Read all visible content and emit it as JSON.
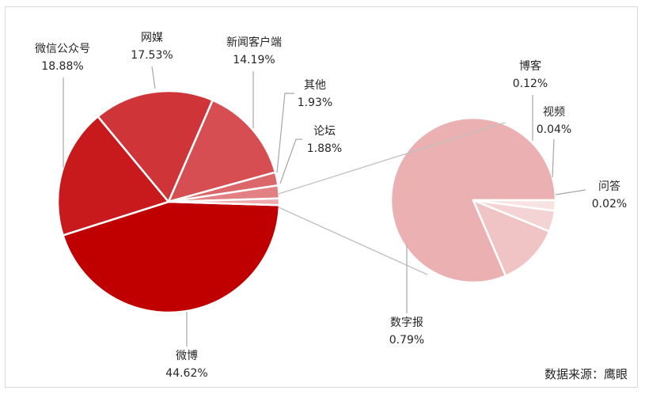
{
  "chart_data": {
    "type": "pie",
    "subtype": "pie-of-pie",
    "main_pie": {
      "slices": [
        {
          "name": "微博",
          "value_label": "44.62%",
          "value": 44.62,
          "color": "#c00000"
        },
        {
          "name": "微信公众号",
          "value_label": "18.88%",
          "value": 18.88,
          "color": "#c8191c"
        },
        {
          "name": "网媒",
          "value_label": "17.53%",
          "value": 17.53,
          "color": "#cf3538"
        },
        {
          "name": "新闻客户端",
          "value_label": "14.19%",
          "value": 14.19,
          "color": "#d64e51"
        },
        {
          "name": "其他",
          "value_label": "1.93%",
          "value": 1.93,
          "color": "#dc676a"
        },
        {
          "name": "论坛",
          "value_label": "1.88%",
          "value": 1.88,
          "color": "#e28083"
        },
        {
          "name": "",
          "value_label": "",
          "value": 0.97,
          "color": "#eeaaac"
        }
      ]
    },
    "secondary_pie": {
      "slices": [
        {
          "name": "数字报",
          "value_label": "0.79%",
          "value": 0.79,
          "color": "#ebb1b2"
        },
        {
          "name": "博客",
          "value_label": "0.12%",
          "value": 0.12,
          "color": "#f0c4c5"
        },
        {
          "name": "视频",
          "value_label": "0.04%",
          "value": 0.04,
          "color": "#f4d3d4"
        },
        {
          "name": "问答",
          "value_label": "0.02%",
          "value": 0.02,
          "color": "#f8e3e3"
        }
      ]
    }
  },
  "source_note": "数据来源：鹰眼"
}
